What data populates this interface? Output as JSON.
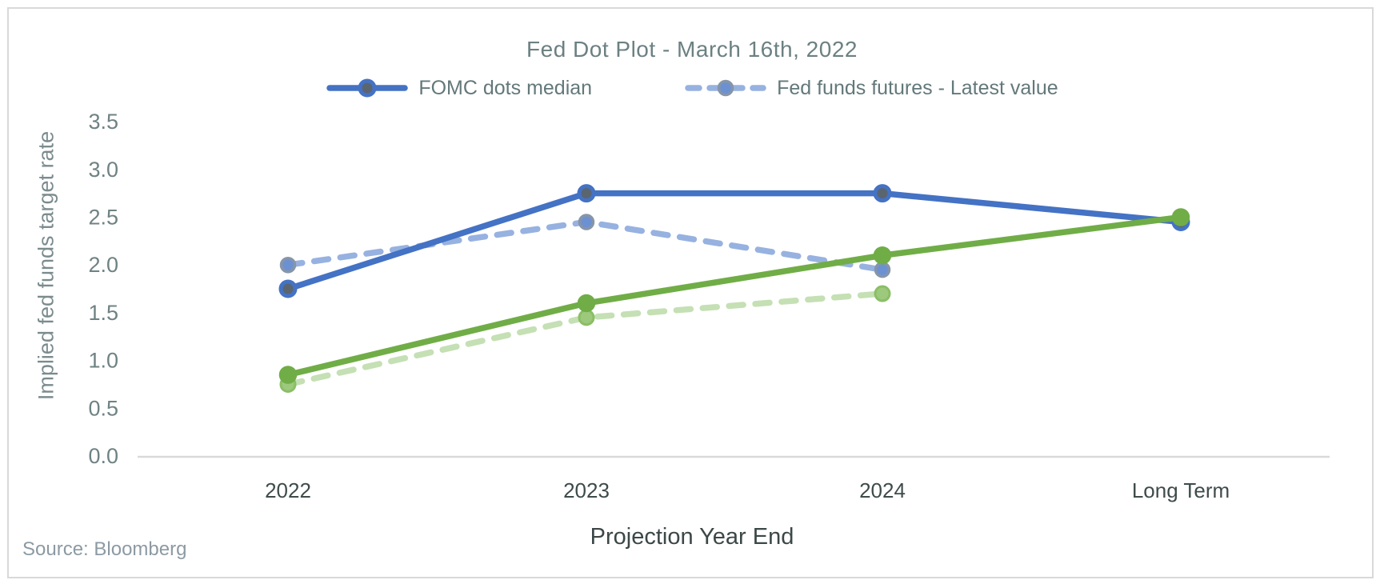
{
  "chart_data": {
    "type": "line",
    "title": "Fed Dot Plot - March 16th, 2022",
    "xlabel": "Projection Year End",
    "ylabel": "Implied fed funds target rate",
    "source": "Source: Bloomberg",
    "categories": [
      "2022",
      "2023",
      "2024",
      "Long Term"
    ],
    "y_ticks": [
      0.0,
      0.5,
      1.0,
      1.5,
      2.0,
      2.5,
      3.0,
      3.5
    ],
    "ylim": [
      0,
      3.5
    ],
    "grid": false,
    "legend_position": "top",
    "series": [
      {
        "id": "fomc-dots-median",
        "name": "FOMC dots median",
        "in_legend": true,
        "style": "solid",
        "color": "#4472C4",
        "marker": {
          "fill": "#5A6570",
          "ring": "#4472C4",
          "radius": 9,
          "ring_width": 5
        },
        "values": [
          1.75,
          2.75,
          2.75,
          2.45
        ],
        "z": 3
      },
      {
        "id": "fed-funds-futures-latest-value",
        "name": "Fed funds futures - Latest value",
        "in_legend": true,
        "style": "dashed",
        "color": "#97B2E0",
        "marker": {
          "fill": "#6C91D2",
          "ring": "#8695A9",
          "radius": 8.5,
          "ring_width": 3.5
        },
        "values": [
          2.0,
          2.45,
          1.95,
          null
        ],
        "z": 2
      },
      {
        "id": "green-solid-series",
        "name": "",
        "in_legend": false,
        "style": "solid",
        "color": "#70AD47",
        "marker": {
          "fill": "#70AD47",
          "ring": "#70AD47",
          "radius": 10,
          "ring_width": 2.5
        },
        "values": [
          0.85,
          1.6,
          2.1,
          2.5
        ],
        "z": 4
      },
      {
        "id": "green-dashed-series",
        "name": "",
        "in_legend": false,
        "style": "dashed",
        "color": "#C5E0B4",
        "marker": {
          "fill": "#9CC97B",
          "ring": "#8BBE66",
          "radius": 9,
          "ring_width": 3
        },
        "values": [
          0.75,
          1.45,
          1.7,
          null
        ],
        "z": 1
      }
    ],
    "colors": {
      "axis_line": "#D9D9D9",
      "tick_label": "#6F8283",
      "category_label": "#3F4B4B",
      "title_text": "#6C8082",
      "legend_text": "#63787A",
      "axis_title": "#3C4747",
      "y_axis_title": "#7B8B8E",
      "source_text": "#8C9AA3",
      "frame_border": "#D9D9D9"
    }
  }
}
